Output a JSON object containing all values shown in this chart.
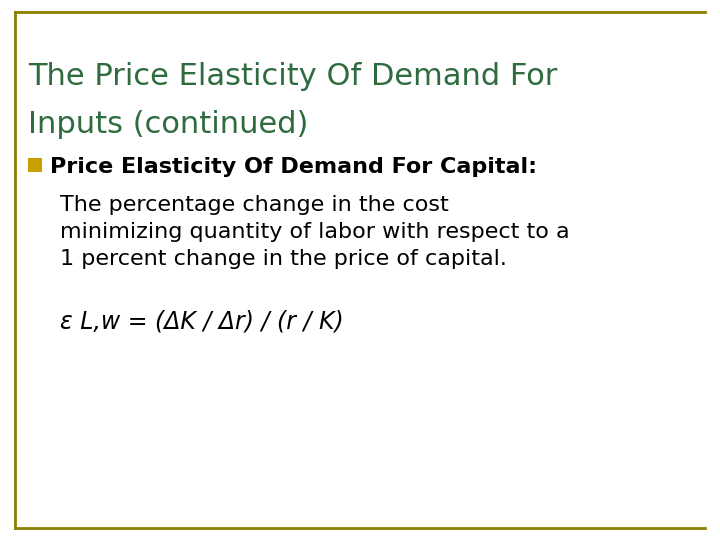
{
  "title_line1": "The Price Elasticity Of Demand For",
  "title_line2": "Inputs (continued)",
  "title_color": "#2E6B3E",
  "background_color": "#FFFFFF",
  "border_color": "#8B8000",
  "bullet_color": "#C8A000",
  "bullet_text": "Price Elasticity Of Demand For Capital:",
  "body_line1": "The percentage change in the cost",
  "body_line2": "minimizing quantity of labor with respect to a",
  "body_line3": "1 percent change in the price of capital.",
  "formula": "ε L,w = (ΔK / Δr) / (r / K)",
  "title_fontsize": 22,
  "bullet_fontsize": 16,
  "body_fontsize": 16,
  "formula_fontsize": 17
}
